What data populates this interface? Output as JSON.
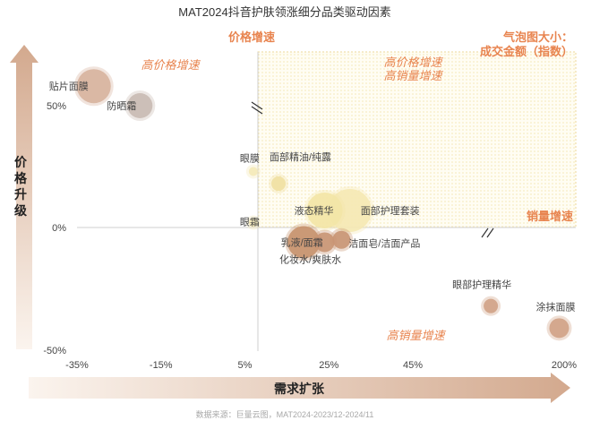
{
  "chart_data": {
    "type": "scatter",
    "title": "MAT2024抖音护肤领涨细分品类驱动因素",
    "xlabel": "需求扩张",
    "ylabel": "价格升级",
    "x_ticks": [
      "-35%",
      "-15%",
      "5%",
      "25%",
      "45%",
      "200%"
    ],
    "y_ticks": [
      "50%",
      "0%",
      "-50%"
    ],
    "xlim": [
      -40,
      200
    ],
    "ylim": [
      -50,
      70
    ],
    "grid": false,
    "legend_note": [
      "气泡图大小：",
      "成交金额（指数）"
    ],
    "quadrant_labels": {
      "top_left": "高价格增速",
      "top_right": [
        "高价格增速",
        "高销量增速"
      ],
      "bottom": "高销量增速",
      "right": "销量增速",
      "top": "价格增速"
    },
    "points": [
      {
        "name": "贴片面膜",
        "x": -31,
        "y": 58,
        "size": 19,
        "color": "#d7b39d"
      },
      {
        "name": "防晒霜",
        "x": -20,
        "y": 50,
        "size": 14,
        "color": "#c9bab2"
      },
      {
        "name": "眼膜",
        "x": 7,
        "y": 23,
        "size": 5,
        "color": "#f4e9b8"
      },
      {
        "name": "面部精油/纯露",
        "x": 13,
        "y": 18,
        "size": 8,
        "color": "#f0e0a2"
      },
      {
        "name": "液态精华",
        "x": 24,
        "y": 7,
        "size": 20,
        "color": "#f3e6a6"
      },
      {
        "name": "面部护理套装",
        "x": 30,
        "y": 7,
        "size": 24,
        "color": "#f5e9b4"
      },
      {
        "name": "眼霜",
        "x": 7,
        "y": 2,
        "size": 5,
        "color": "#f4e9b8"
      },
      {
        "name": "乳液/面霜",
        "x": 19,
        "y": -6,
        "size": 18,
        "color": "#c7916d"
      },
      {
        "name": "化妆水/爽肤水",
        "x": 24,
        "y": -6,
        "size": 11,
        "color": "#c99574"
      },
      {
        "name": "洁面皂/洁面产品",
        "x": 28,
        "y": -5,
        "size": 10,
        "color": "#c99574"
      },
      {
        "name": "眼部护理精华",
        "x": 52,
        "y": -32,
        "size": 8,
        "color": "#d0a286"
      },
      {
        "name": "涂抹面膜",
        "x": 190,
        "y": -41,
        "size": 11,
        "color": "#d0a286"
      }
    ],
    "source": "数据来源：巨量云图，MAT2024-2023/12-2024/11"
  }
}
